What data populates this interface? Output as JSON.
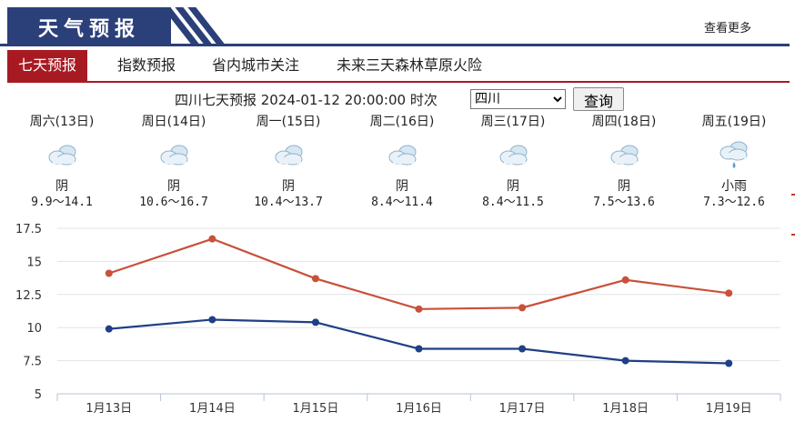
{
  "header": {
    "title": "天气预报",
    "more_label": "查看更多"
  },
  "tabs": [
    {
      "label": "七天预报",
      "active": true
    },
    {
      "label": "指数预报",
      "active": false
    },
    {
      "label": "省内城市关注",
      "active": false
    },
    {
      "label": "未来三天森林草原火险",
      "active": false
    }
  ],
  "query": {
    "text": "四川七天预报 2024-01-12 20:00:00 时次",
    "selected_province": "四川",
    "button_label": "查询"
  },
  "days": [
    {
      "weekday": "周六(13日)",
      "condition": "阴",
      "range": "9.9～14.1",
      "icon": "cloudy-icon"
    },
    {
      "weekday": "周日(14日)",
      "condition": "阴",
      "range": "10.6～16.7",
      "icon": "cloudy-icon"
    },
    {
      "weekday": "周一(15日)",
      "condition": "阴",
      "range": "10.4～13.7",
      "icon": "cloudy-icon"
    },
    {
      "weekday": "周二(16日)",
      "condition": "阴",
      "range": "8.4～11.4",
      "icon": "cloudy-icon"
    },
    {
      "weekday": "周三(17日)",
      "condition": "阴",
      "range": "8.4～11.5",
      "icon": "cloudy-icon"
    },
    {
      "weekday": "周四(18日)",
      "condition": "阴",
      "range": "7.5～13.6",
      "icon": "cloudy-icon"
    },
    {
      "weekday": "周五(19日)",
      "condition": "小雨",
      "range": "7.3～12.6",
      "icon": "light-rain-icon"
    }
  ],
  "colors": {
    "brand": "#2b3f79",
    "accent": "#a81a22",
    "high_line": "#c9503a",
    "low_line": "#1f3f86"
  },
  "chart_data": {
    "type": "line",
    "categories": [
      "1月13日",
      "1月14日",
      "1月15日",
      "1月16日",
      "1月17日",
      "1月18日",
      "1月19日"
    ],
    "series": [
      {
        "values": [
          14.1,
          16.7,
          13.7,
          11.4,
          11.5,
          13.6,
          12.6
        ],
        "color": "#c9503a"
      },
      {
        "values": [
          9.9,
          10.6,
          10.4,
          8.4,
          8.4,
          7.5,
          7.3
        ],
        "color": "#1f3f86"
      }
    ],
    "y_ticks": [
      "17.5",
      "15",
      "12.5",
      "10",
      "7.5",
      "5"
    ],
    "ylim": [
      5,
      17.5
    ],
    "grid": true,
    "legend": "none"
  }
}
